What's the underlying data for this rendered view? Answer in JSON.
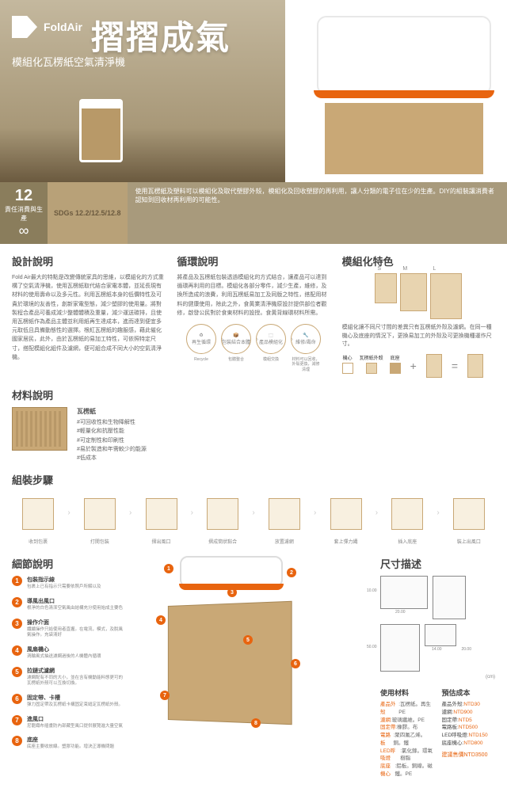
{
  "brand": "FoldAir",
  "main_title": "摺摺成氣",
  "subtitle": "模組化瓦楞紙空氣清淨機",
  "badge": {
    "number": "12",
    "tag": "責任消費與生產",
    "sdgs": "SDGs 12.2/12.5/12.8",
    "desc": "使用瓦楞紙及塑料可以模組化及取代塑膠外殼，模組化及回收塑膠的再利用，讓人分類的電子位在少的生產。DIY的組裝讓消費者認知到回收材再利用的可能性。"
  },
  "design": {
    "title": "設計說明",
    "text": "Fold Air最大的特點是改變傳統家具的思維，以模組化的方式重構了空氣清淨機，使用瓦楞紙取代結合家電本體，並延長現有材料的使用壽命以及多元性。利用瓦楞紙本身的低價特性及可貴於環境的友善性，創新家電型態，減少塑膠的使用量。將對製程合產品可養成減少整體體積及重量，減少運送碳排，且使用瓦楞紙作為產品主體並利用紙再生達成本，進而達到便宜多元取低且具備動態性的選擇。根紅瓦楞紙的趣服感，藉此催化國家居民，此外，由於瓦楞紙的易加工特性，可依照特定尺寸，搭配模組化組件及濾網，便可組合成不同大小的空氣清淨機。"
  },
  "cycle": {
    "title": "循環說明",
    "text": "將產品及瓦楞紙包裝透過模組化的方式結合，讓產品可以達到循環再利用的目標。模組化各部分零件，減少生產，維修，及換所造成的浪費，利用瓦楞紙易加工及同版之特性，搭配用材料的健康使用，除此之外，食黃業清淨機原設計提供部位者觀修，啟發公民對於食東材料的設授。食黃背線環材料所需。",
    "icons": [
      {
        "label": "再生循環",
        "caption": "Recycle"
      },
      {
        "label": "包裝結合本體",
        "caption": "包體整合"
      },
      {
        "label": "產品模組化",
        "caption": "模組交換"
      },
      {
        "label": "維修/壽命",
        "caption": "材料可以回收，外殼更換，減修清理"
      }
    ]
  },
  "modular": {
    "title": "模組化特色",
    "sizes": [
      "S",
      "M",
      "L"
    ],
    "note": "模組化讓不同尺寸間的差異只有瓦楞紙外殼及濾網。在同一種機心及底座的情況下，更換易加工的外殼及可更換機種運作尺寸。",
    "legend": [
      "機心",
      "瓦楞紙外殼",
      "底座"
    ]
  },
  "material": {
    "title": "材料說明",
    "name": "瓦楞紙",
    "props": [
      "#可回收性和生物降解性",
      "#輕量化和抗壓性能",
      "#可定制性和印刷性",
      "#易於製造和年需較少的能源",
      "#低成本"
    ]
  },
  "assembly": {
    "title": "組裝步驟",
    "steps": [
      "收到包裹",
      "打開包裝",
      "摺出風口",
      "摺成筒狀黏合",
      "放置濾網",
      "套上彈力繩",
      "插入底座",
      "裝上出風口"
    ]
  },
  "details": {
    "title": "細節說明",
    "items": [
      {
        "n": "1",
        "t": "包裝指示線",
        "d": "包裹上已有指示只需要依照戶所解以及"
      },
      {
        "n": "2",
        "t": "導風出風口",
        "d": "根淨的白色清潔空氣風由結構充分使用始成主要色"
      },
      {
        "n": "3",
        "t": "操作介面",
        "d": "纖續操作只給使用者直握。在電流，模式，及脫風氣操作。充袋清好"
      },
      {
        "n": "4",
        "t": "風扇機心",
        "d": "渦輪風式抽送濾網過後的人機體內循環"
      },
      {
        "n": "5",
        "t": "拉鏈式濾網",
        "d": "濾網配有不同的大小，並在含有機動能料態更可的瓦楞紙外殼可以互換切換。"
      },
      {
        "n": "6",
        "t": "固定帶、卡槽",
        "d": "彈力固定帶及瓦楞紙卡構固定束縫定瓦楞紙外殼。"
      },
      {
        "n": "7",
        "t": "進風口",
        "d": "尼龍織布插畫防內部藏型風口提供展覽進大量空氣"
      },
      {
        "n": "8",
        "t": "底座",
        "d": "底座主要收放線。塑膠功能。增決正導機問題"
      }
    ]
  },
  "dimensions": {
    "title": "尺寸描述",
    "vals": {
      "w": "20.00",
      "d": "20.00",
      "h1": "14.00",
      "h2": "20.00",
      "h3": "50.00",
      "t": "10.00",
      "unit": "(cm)"
    }
  },
  "materials_used": {
    "title": "使用材料",
    "items": [
      {
        "k": "產品外殼",
        "v": "瓦楞紙。再生PE"
      },
      {
        "k": "濾網",
        "v": "玻璃纖維。PE"
      },
      {
        "k": "固定帶",
        "v": "橡膠。布"
      },
      {
        "k": "電路板",
        "v": "聚四氟乙烯。銅。鐵"
      },
      {
        "k": "LED呼吸燈",
        "v": "氯化鎵。環氧樹脂"
      },
      {
        "k": "底座機心",
        "v": "鋁板。銅線。磁鐵。PE"
      }
    ]
  },
  "cost": {
    "title": "預估成本",
    "items": [
      {
        "k": "產品外殼",
        "v": "NTD30"
      },
      {
        "k": "濾網",
        "v": "NTD900"
      },
      {
        "k": "固定帶",
        "v": "NTD5"
      },
      {
        "k": "電路板",
        "v": "NTD500"
      },
      {
        "k": "LED呼吸燈",
        "v": "NTD150"
      },
      {
        "k": "底座機心",
        "v": "NTD800"
      }
    ],
    "total_label": "建議售價",
    "total": "NTD3500"
  },
  "colors": {
    "accent": "#e8640f",
    "cardboard": "#c9a876",
    "beige": "#b8a178"
  }
}
